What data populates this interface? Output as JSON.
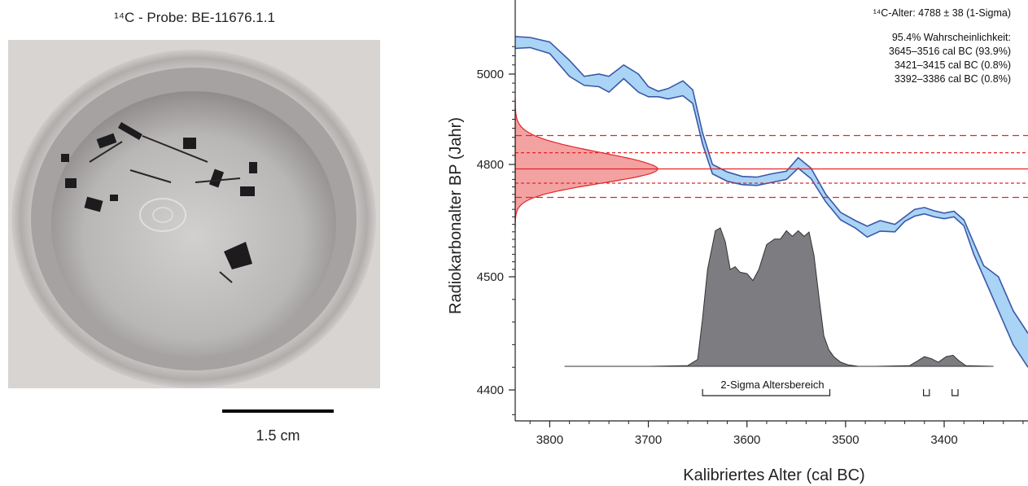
{
  "photo_panel": {
    "title": "¹⁴C - Probe: BE-11676.1.1",
    "scale_label": "1.5 cm"
  },
  "chart_data": {
    "type": "area",
    "xlabel": "Kalibriertes Alter (cal BC)",
    "ylabel": "Radiokarbonalter BP (Jahr)",
    "xlim": [
      3835,
      3315
    ],
    "ylim": [
      4375,
      5080
    ],
    "x_ticks": [
      3800,
      3700,
      3600,
      3500,
      3400
    ],
    "y_ticks": [
      4400,
      4500,
      4800,
      5000
    ],
    "radiocarbon_age": {
      "mean": 4788,
      "sigma": 38
    },
    "info_lines": [
      "¹⁴C-Alter: 4788 ± 38 (1-Sigma)",
      "95.4% Wahrscheinlichkeit:",
      "3645–3516 cal BC (93.9%)",
      "3421–3415 cal BC (0.8%)",
      "3392–3386 cal BC (0.8%)"
    ],
    "range_label": "2-Sigma Altersbereich",
    "two_sigma_ranges": [
      [
        3645,
        3516
      ],
      [
        3421,
        3415
      ],
      [
        3392,
        3386
      ]
    ],
    "calibration_curve": {
      "x": [
        3835,
        3820,
        3800,
        3780,
        3765,
        3750,
        3740,
        3725,
        3710,
        3700,
        3690,
        3680,
        3665,
        3655,
        3645,
        3635,
        3620,
        3605,
        3590,
        3575,
        3560,
        3548,
        3535,
        3520,
        3505,
        3490,
        3478,
        3465,
        3450,
        3440,
        3430,
        3420,
        3410,
        3400,
        3390,
        3380,
        3370,
        3360,
        3345,
        3330,
        3315
      ],
      "upper": [
        5082,
        5080,
        5070,
        5030,
        4995,
        5000,
        4995,
        5020,
        5000,
        4972,
        4962,
        4968,
        4985,
        4965,
        4870,
        4800,
        4780,
        4768,
        4766,
        4775,
        4782,
        4815,
        4790,
        4720,
        4672,
        4650,
        4635,
        4650,
        4640,
        4660,
        4680,
        4685,
        4676,
        4670,
        4675,
        4652,
        4590,
        4530,
        4500,
        4470,
        4450
      ],
      "lower": [
        5056,
        5058,
        5045,
        4995,
        4975,
        4972,
        4960,
        4990,
        4960,
        4950,
        4950,
        4945,
        4952,
        4935,
        4845,
        4775,
        4755,
        4746,
        4744,
        4752,
        4760,
        4790,
        4762,
        4700,
        4652,
        4630,
        4606,
        4622,
        4620,
        4648,
        4662,
        4668,
        4660,
        4655,
        4660,
        4636,
        4560,
        4500,
        4470,
        4440,
        4420
      ]
    },
    "calibrated_distribution": {
      "x": [
        3785,
        3760,
        3700,
        3660,
        3650,
        3645,
        3640,
        3632,
        3627,
        3622,
        3617,
        3612,
        3607,
        3600,
        3594,
        3588,
        3580,
        3572,
        3566,
        3560,
        3554,
        3548,
        3542,
        3537,
        3532,
        3527,
        3522,
        3517,
        3512,
        3505,
        3497,
        3487,
        3470,
        3435,
        3428,
        3420,
        3413,
        3406,
        3398,
        3391,
        3385,
        3378,
        3350
      ],
      "y": [
        0,
        0,
        0,
        0.005,
        0.05,
        0.35,
        0.7,
        0.98,
        1.0,
        0.9,
        0.7,
        0.72,
        0.68,
        0.67,
        0.62,
        0.7,
        0.88,
        0.92,
        0.92,
        0.98,
        0.94,
        0.98,
        0.94,
        0.97,
        0.8,
        0.5,
        0.22,
        0.12,
        0.07,
        0.03,
        0.01,
        0.0,
        0.0,
        0.005,
        0.035,
        0.07,
        0.055,
        0.03,
        0.07,
        0.08,
        0.04,
        0.005,
        0
      ]
    },
    "colors": {
      "curve_fill": "#a9d4f5",
      "curve_line": "#3b58a8",
      "distribution_fill": "#7d7c80",
      "radiocarbon_fill": "#f3a2a2",
      "radiocarbon_line": "#e42528"
    }
  }
}
